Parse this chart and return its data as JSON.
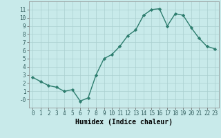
{
  "x": [
    0,
    1,
    2,
    3,
    4,
    5,
    6,
    7,
    8,
    9,
    10,
    11,
    12,
    13,
    14,
    15,
    16,
    17,
    18,
    19,
    20,
    21,
    22,
    23
  ],
  "y": [
    2.7,
    2.2,
    1.7,
    1.5,
    1.0,
    1.2,
    -0.2,
    0.2,
    3.0,
    5.0,
    5.5,
    6.5,
    7.8,
    8.5,
    10.3,
    11.0,
    11.1,
    9.0,
    10.5,
    10.3,
    8.8,
    7.5,
    6.5,
    6.2
  ],
  "line_color": "#2d7d6e",
  "marker": "D",
  "markersize": 2.2,
  "linewidth": 1.0,
  "bg_color": "#c8eaea",
  "grid_color": "#aacfcf",
  "xlabel": "Humidex (Indice chaleur)",
  "xlabel_fontsize": 7,
  "xlim": [
    -0.5,
    23.5
  ],
  "ylim": [
    -1,
    12
  ],
  "xticks": [
    0,
    1,
    2,
    3,
    4,
    5,
    6,
    7,
    8,
    9,
    10,
    11,
    12,
    13,
    14,
    15,
    16,
    17,
    18,
    19,
    20,
    21,
    22,
    23
  ],
  "yticks": [
    0,
    1,
    2,
    3,
    4,
    5,
    6,
    7,
    8,
    9,
    10,
    11
  ],
  "ytick_labels": [
    "-0",
    "1",
    "2",
    "3",
    "4",
    "5",
    "6",
    "7",
    "8",
    "9",
    "10",
    "11"
  ],
  "tick_fontsize": 5.5
}
